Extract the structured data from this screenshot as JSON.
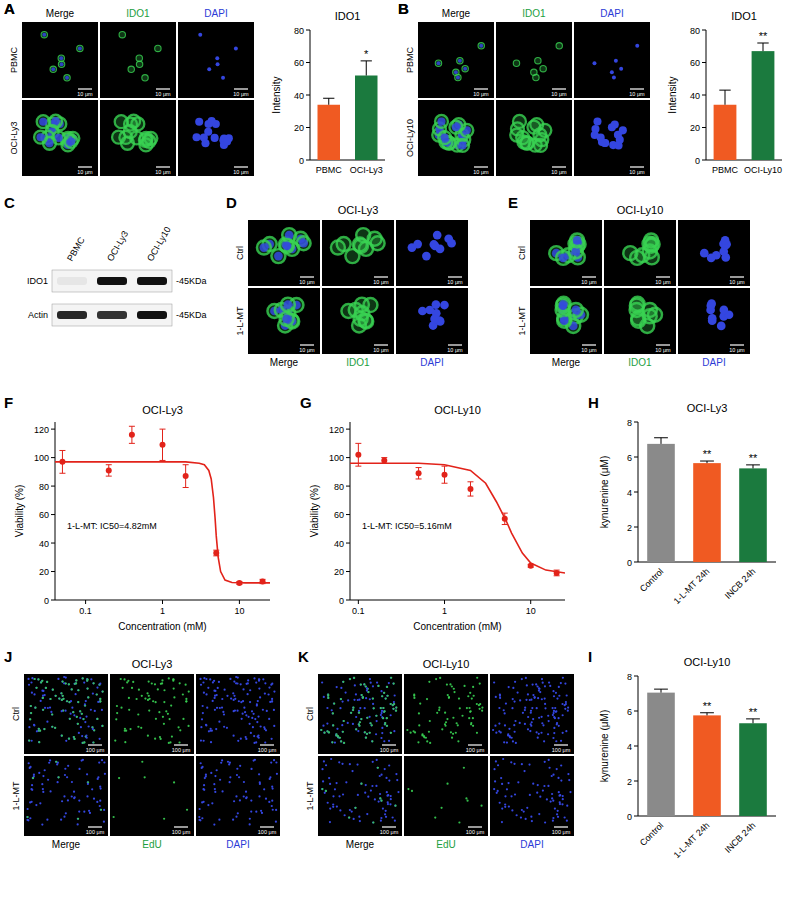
{
  "chart_data": [
    {
      "type": "bar",
      "panel": "A",
      "title": "IDO1",
      "y_label": "Intensity",
      "categories": [
        "PBMC",
        "OCI-Ly3"
      ],
      "values": [
        34,
        52
      ],
      "errors": [
        4,
        9
      ],
      "colors": [
        "#f05a22",
        "#1b7a3e"
      ],
      "significance": [
        null,
        "*"
      ],
      "ylim": [
        0,
        80
      ],
      "yticks": [
        0,
        20,
        40,
        60,
        80
      ]
    },
    {
      "type": "bar",
      "panel": "B",
      "title": "IDO1",
      "y_label": "Intensity",
      "categories": [
        "PBMC",
        "OCI-Ly10"
      ],
      "values": [
        34,
        67
      ],
      "errors": [
        9,
        5
      ],
      "colors": [
        "#f05a22",
        "#1b7a3e"
      ],
      "significance": [
        null,
        "**"
      ],
      "ylim": [
        0,
        80
      ],
      "yticks": [
        0,
        20,
        40,
        60,
        80
      ]
    },
    {
      "type": "scatter",
      "panel": "F",
      "title": "OCI-Ly3",
      "x_label": "Concentration (mM)",
      "y_label": "Viability (%)",
      "annotation": "1-L-MT: IC50=4.82mM",
      "log": "x",
      "xlim": [
        0.04,
        25
      ],
      "xticks": [
        0.1,
        1,
        10
      ],
      "ylim": [
        0,
        125
      ],
      "yticks": [
        0,
        20,
        40,
        60,
        80,
        100,
        120
      ],
      "series": [
        {
          "type": "scatter",
          "color": "#e2231a",
          "marker": "circle",
          "x": [
            0.05,
            0.2,
            0.4,
            1,
            2,
            5,
            10,
            20
          ],
          "values": [
            97,
            91,
            116,
            109,
            87,
            33,
            12,
            13
          ],
          "errors": [
            8,
            4,
            6,
            11,
            8,
            2,
            1,
            1.5
          ]
        },
        {
          "type": "line",
          "color": "#e2231a",
          "line_style": "solid",
          "x": [
            0.04,
            0.1,
            0.5,
            1,
            2,
            3,
            3.5,
            4,
            4.3,
            4.6,
            4.82,
            5.0,
            5.3,
            5.7,
            6.5,
            8,
            12,
            25
          ],
          "values": [
            97,
            97,
            97,
            97,
            97,
            96,
            95,
            91,
            85,
            72,
            58,
            45,
            30,
            20,
            14,
            12.3,
            12,
            12
          ]
        }
      ]
    },
    {
      "type": "scatter",
      "panel": "G",
      "title": "OCI-Ly10",
      "x_label": "Concentration (mM)",
      "y_label": "Viability (%)",
      "annotation": "1-L-MT: IC50=5.16mM",
      "log": "x",
      "xlim": [
        0.08,
        25
      ],
      "xticks": [
        0.1,
        1,
        10
      ],
      "ylim": [
        0,
        125
      ],
      "yticks": [
        0,
        20,
        40,
        60,
        80,
        100,
        120
      ],
      "series": [
        {
          "type": "scatter",
          "color": "#e2231a",
          "marker": "circle",
          "x": [
            0.1,
            0.2,
            0.5,
            1,
            2,
            5,
            10,
            20
          ],
          "values": [
            102,
            98,
            89,
            88,
            78,
            57,
            24,
            19
          ],
          "errors": [
            8,
            2,
            4,
            6,
            5,
            4,
            1,
            2
          ]
        },
        {
          "type": "line",
          "color": "#e2231a",
          "line_style": "solid",
          "x": [
            0.08,
            0.5,
            1,
            2,
            3,
            4,
            5.16,
            6,
            8,
            10,
            15,
            25
          ],
          "values": [
            96,
            96,
            95,
            91,
            82,
            69,
            56,
            47,
            33,
            26,
            21,
            19
          ]
        }
      ]
    },
    {
      "type": "bar",
      "panel": "H",
      "title": "OCI-Ly3",
      "y_label": "kynurenine (μM)",
      "categories": [
        "Control",
        "1-L-MT 24h",
        "INCB 24h"
      ],
      "values": [
        6.75,
        5.65,
        5.35
      ],
      "errors": [
        0.35,
        0.12,
        0.2
      ],
      "colors": [
        "#8a8a8a",
        "#f05a22",
        "#1b7a3e"
      ],
      "significance": [
        null,
        "**",
        "**"
      ],
      "ylim": [
        0,
        8
      ],
      "yticks": [
        0,
        2,
        4,
        6,
        8
      ]
    },
    {
      "type": "bar",
      "panel": "I",
      "title": "OCI-Ly10",
      "y_label": "kynurenine (μM)",
      "categories": [
        "Control",
        "1-L-MT 24h",
        "INCB 24h"
      ],
      "values": [
        7.05,
        5.75,
        5.3
      ],
      "errors": [
        0.2,
        0.15,
        0.25
      ],
      "colors": [
        "#8a8a8a",
        "#f05a22",
        "#1b7a3e"
      ],
      "significance": [
        null,
        "**",
        "**"
      ],
      "ylim": [
        0,
        8
      ],
      "yticks": [
        0,
        2,
        4,
        6,
        8
      ]
    }
  ],
  "image_panels": [
    {
      "panel": "A",
      "columns": [
        "Merge",
        "IDO1",
        "DAPI"
      ],
      "rows": [
        "PBMC",
        "OCI-Ly3"
      ],
      "scale_bar": "10 μm"
    },
    {
      "panel": "B",
      "columns": [
        "Merge",
        "IDO1",
        "DAPI"
      ],
      "rows": [
        "PBMC",
        "OCI-Ly10"
      ],
      "scale_bar": "10 μm"
    },
    {
      "panel": "D",
      "title": "OCI-Ly3",
      "columns": [
        "Merge",
        "IDO1",
        "DAPI"
      ],
      "rows": [
        "Ctrl",
        "1-L-MT"
      ],
      "scale_bar": "10 μm"
    },
    {
      "panel": "E",
      "title": "OCI-Ly10",
      "columns": [
        "Merge",
        "IDO1",
        "DAPI"
      ],
      "rows": [
        "Ctrl",
        "1-L-MT"
      ],
      "scale_bar": "10 μm"
    },
    {
      "panel": "J",
      "title": "OCI-Ly3",
      "columns": [
        "Merge",
        "EdU",
        "DAPI"
      ],
      "rows": [
        "Ctrl",
        "1-L-MT"
      ],
      "scale_bar": "100 μm"
    },
    {
      "panel": "K",
      "title": "OCI-Ly10",
      "columns": [
        "Merge",
        "EdU",
        "DAPI"
      ],
      "rows": [
        "Ctrl",
        "1-L-MT"
      ],
      "scale_bar": "100 μm"
    }
  ],
  "blot": {
    "panel": "C",
    "lanes": [
      "PBMC",
      "OCI-Ly3",
      "OCI-Ly10"
    ],
    "rows": [
      {
        "label": "IDO1",
        "size": "-45KDa"
      },
      {
        "label": "Actin",
        "size": "-45KDa"
      }
    ]
  }
}
